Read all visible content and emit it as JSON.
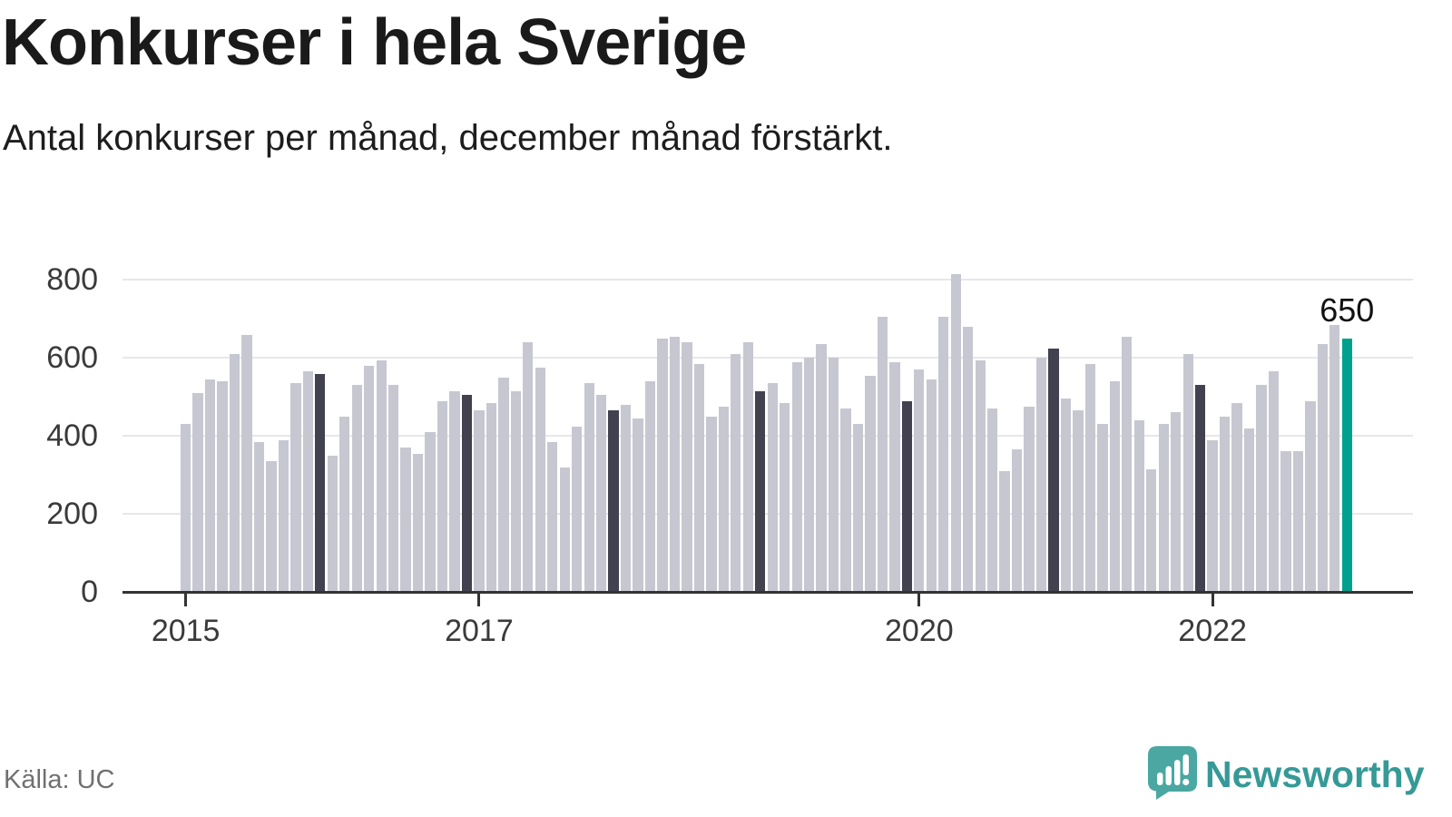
{
  "header": {
    "title": "Konkurser i hela Sverige",
    "subtitle": "Antal konkurser per månad, december månad förstärkt."
  },
  "footer": {
    "source": "Källa: UC",
    "brand_name": "Newsworthy"
  },
  "chart_data": {
    "type": "bar",
    "title": "Konkurser i hela Sverige",
    "subtitle": "Antal konkurser per månad, december månad förstärkt.",
    "xlabel": "",
    "ylabel": "Antal konkurser per månad",
    "ylim": [
      0,
      820
    ],
    "yticks": [
      0,
      200,
      400,
      600,
      800
    ],
    "grid": "horizontal",
    "legend": "none",
    "years": [
      "2015",
      "2016",
      "2017",
      "2018",
      "2019",
      "2020",
      "2021",
      "2022"
    ],
    "month_count": 96,
    "values_by_year": {
      "2015": [
        430,
        510,
        545,
        540,
        610,
        660,
        385,
        335,
        390,
        535,
        565,
        560
      ],
      "2016": [
        350,
        450,
        530,
        580,
        595,
        530,
        370,
        355,
        410,
        490,
        515,
        505
      ],
      "2017": [
        465,
        485,
        550,
        515,
        640,
        575,
        385,
        320,
        425,
        535,
        505,
        465
      ],
      "2018": [
        480,
        445,
        540,
        650,
        655,
        640,
        585,
        450,
        475,
        610,
        640,
        515
      ],
      "2019": [
        535,
        485,
        590,
        600,
        635,
        600,
        470,
        430,
        555,
        705,
        590,
        490
      ],
      "2020": [
        570,
        545,
        705,
        815,
        680,
        595,
        470,
        310,
        365,
        475,
        600,
        625
      ],
      "2021": [
        495,
        465,
        585,
        430,
        540,
        655,
        440,
        315,
        430,
        460,
        610,
        530
      ],
      "2022": [
        390,
        450,
        485,
        420,
        530,
        565,
        360,
        360,
        490,
        635,
        685,
        650
      ]
    },
    "december_emphasized": true,
    "highlight_last_bar": true,
    "last_value_label": "650",
    "xticks": [
      {
        "label": "2015",
        "month_index": 0
      },
      {
        "label": "2017",
        "month_index": 24
      },
      {
        "label": "2020",
        "month_index": 60
      },
      {
        "label": "2022",
        "month_index": 84
      }
    ],
    "colors": {
      "bar": "#c7c7d1",
      "december_bar": "#41414f",
      "highlight_bar": "#00a08e",
      "axis": "#333333",
      "grid": "#e7e7eb",
      "annotation_text": "#111111",
      "brand_teal": "#4aa7a1",
      "wordmark_teal": "#359a97"
    }
  }
}
